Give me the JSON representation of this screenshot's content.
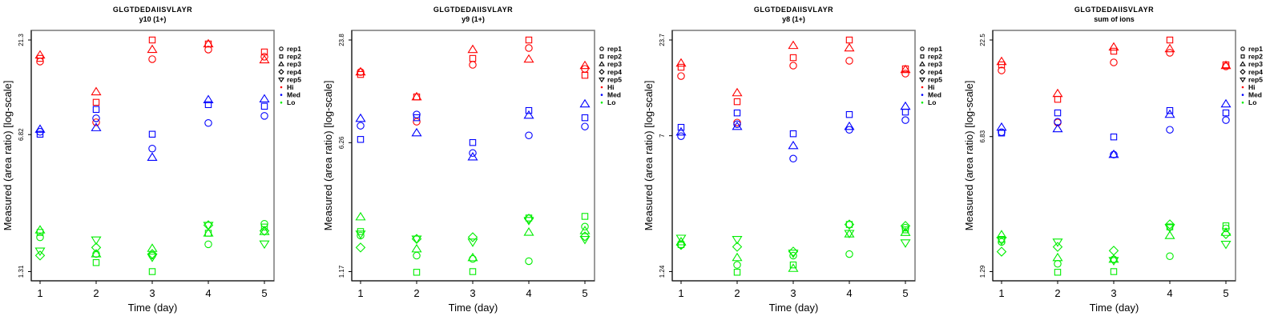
{
  "colors": {
    "Hi": "#ff0000",
    "Med": "#0000ff",
    "Lo": "#00ee00",
    "axis": "#000000",
    "box": "#808080"
  },
  "legend": {
    "reps": [
      {
        "label": "rep1",
        "shape": "circle"
      },
      {
        "label": "rep2",
        "shape": "square"
      },
      {
        "label": "rep3",
        "shape": "triangle-up"
      },
      {
        "label": "rep4",
        "shape": "diamond"
      },
      {
        "label": "rep5",
        "shape": "triangle-down"
      }
    ],
    "groups": [
      {
        "label": "Hi",
        "key": "Hi"
      },
      {
        "label": "Med",
        "key": "Med"
      },
      {
        "label": "Lo",
        "key": "Lo"
      }
    ]
  },
  "chart_data": [
    {
      "type": "scatter",
      "title": "GLGTDEDAIISVLAYR",
      "subtitle": "y10 (1+)",
      "xlabel": "Time (day)",
      "ylabel": "Measured (area ratio) [log-scale]",
      "yscale": "log",
      "x": [
        1,
        2,
        3,
        4,
        5
      ],
      "xticks": [
        "1",
        "2",
        "3",
        "4",
        "5"
      ],
      "yticks": [
        21.3,
        6.82,
        1.31
      ],
      "ytick_labels": [
        "21.3",
        "6.82",
        "1.31"
      ],
      "legend_position": "right",
      "series": [
        {
          "group": "Hi",
          "rep": "rep1",
          "values": [
            16.43,
            7.91,
            16.91,
            18.98,
            17.41
          ]
        },
        {
          "group": "Hi",
          "rep": "rep2",
          "values": [
            17.07,
            10.06,
            21.3,
            20.3,
            18.44
          ]
        },
        {
          "group": "Hi",
          "rep": "rep3",
          "values": [
            17.75,
            11.4,
            18.98,
            20.3,
            16.75
          ]
        },
        {
          "group": "Med",
          "rep": "rep1",
          "values": [
            7.05,
            8.3,
            5.76,
            7.84,
            8.54
          ]
        },
        {
          "group": "Med",
          "rep": "rep2",
          "values": [
            6.85,
            9.23,
            6.85,
            9.78,
            9.59
          ]
        },
        {
          "group": "Med",
          "rep": "rep3",
          "values": [
            7.26,
            7.4,
            5.18,
            10.36,
            10.46
          ]
        },
        {
          "group": "Lo",
          "rep": "rep1",
          "values": [
            1.98,
            1.62,
            1.59,
            1.82,
            2.33
          ]
        },
        {
          "group": "Lo",
          "rep": "rep2",
          "values": [
            2.1,
            1.46,
            1.31,
            2.08,
            2.24
          ]
        },
        {
          "group": "Lo",
          "rep": "rep3",
          "values": [
            2.16,
            1.62,
            1.73,
            2.08,
            2.12
          ]
        },
        {
          "group": "Lo",
          "rep": "rep4",
          "values": [
            1.59,
            1.75,
            1.62,
            2.29,
            2.14
          ]
        },
        {
          "group": "Lo",
          "rep": "rep5",
          "values": [
            1.68,
            1.92,
            1.56,
            2.29,
            1.83
          ]
        }
      ]
    },
    {
      "type": "scatter",
      "title": "GLGTDEDAIISVLAYR",
      "subtitle": "y9 (1+)",
      "xlabel": "Time (day)",
      "ylabel": "Measured (area ratio) [log-scale]",
      "yscale": "log",
      "x": [
        1,
        2,
        3,
        4,
        5
      ],
      "xticks": [
        "1",
        "2",
        "3",
        "4",
        "5"
      ],
      "yticks": [
        23.8,
        6.26,
        1.17
      ],
      "ytick_labels": [
        "23.8",
        "6.26",
        "1.17"
      ],
      "legend_position": "right",
      "series": [
        {
          "group": "Hi",
          "rep": "rep1",
          "values": [
            15.69,
            8.22,
            17.23,
            21.44,
            16.35
          ]
        },
        {
          "group": "Hi",
          "rep": "rep2",
          "values": [
            15.2,
            11.35,
            18.73,
            23.8,
            15.04
          ]
        },
        {
          "group": "Hi",
          "rep": "rep3",
          "values": [
            15.69,
            11.35,
            21.0,
            18.53,
            17.05
          ]
        },
        {
          "group": "Med",
          "rep": "rep1",
          "values": [
            7.8,
            9.03,
            5.47,
            6.88,
            7.72
          ]
        },
        {
          "group": "Med",
          "rep": "rep2",
          "values": [
            6.53,
            8.66,
            6.27,
            9.51,
            8.66
          ]
        },
        {
          "group": "Med",
          "rep": "rep3",
          "values": [
            8.57,
            7.1,
            5.19,
            8.93,
            10.34
          ]
        },
        {
          "group": "Lo",
          "rep": "rep1",
          "values": [
            1.87,
            1.44,
            1.38,
            1.34,
            2.1
          ]
        },
        {
          "group": "Lo",
          "rep": "rep2",
          "values": [
            1.97,
            1.16,
            1.17,
            2.35,
            2.4
          ]
        },
        {
          "group": "Lo",
          "rep": "rep3",
          "values": [
            2.38,
            1.57,
            1.4,
            1.95,
            1.99
          ]
        },
        {
          "group": "Lo",
          "rep": "rep4",
          "values": [
            1.6,
            1.79,
            1.83,
            2.33,
            1.85
          ]
        },
        {
          "group": "Lo",
          "rep": "rep5",
          "values": [
            1.91,
            1.79,
            1.72,
            2.28,
            1.78
          ]
        }
      ]
    },
    {
      "type": "scatter",
      "title": "GLGTDEDAIISVLAYR",
      "subtitle": "y8 (1+)",
      "xlabel": "Time (day)",
      "ylabel": "Measured (area ratio) [log-scale]",
      "yscale": "log",
      "x": [
        1,
        2,
        3,
        4,
        5
      ],
      "xticks": [
        "1",
        "2",
        "3",
        "4",
        "5"
      ],
      "yticks": [
        23.7,
        7,
        1.24
      ],
      "ytick_labels": [
        "23.7",
        "7",
        "1.24"
      ],
      "legend_position": "right",
      "series": [
        {
          "group": "Hi",
          "rep": "rep1",
          "values": [
            14.97,
            8.28,
            17.1,
            18.18,
            15.44
          ]
        },
        {
          "group": "Hi",
          "rep": "rep2",
          "values": [
            16.75,
            10.8,
            18.93,
            23.7,
            16.41
          ]
        },
        {
          "group": "Hi",
          "rep": "rep3",
          "values": [
            17.63,
            12.08,
            22.07,
            21.4,
            16.24
          ]
        },
        {
          "group": "Med",
          "rep": "rep1",
          "values": [
            6.96,
            8.11,
            5.23,
            7.55,
            8.54
          ]
        },
        {
          "group": "Med",
          "rep": "rep2",
          "values": [
            7.79,
            9.36,
            7.18,
            9.17,
            9.46
          ]
        },
        {
          "group": "Med",
          "rep": "rep3",
          "values": [
            7.33,
            7.87,
            6.16,
            7.87,
            10.16
          ]
        },
        {
          "group": "Lo",
          "rep": "rep1",
          "values": [
            1.74,
            1.35,
            1.52,
            1.55,
            2.17
          ]
        },
        {
          "group": "Lo",
          "rep": "rep2",
          "values": [
            1.75,
            1.23,
            1.35,
            2.26,
            2.11
          ]
        },
        {
          "group": "Lo",
          "rep": "rep3",
          "values": [
            1.81,
            1.48,
            1.29,
            2.0,
            2.04
          ]
        },
        {
          "group": "Lo",
          "rep": "rep4",
          "values": [
            1.74,
            1.7,
            1.6,
            2.26,
            2.22
          ]
        },
        {
          "group": "Lo",
          "rep": "rep5",
          "values": [
            1.9,
            1.87,
            1.57,
            2.02,
            1.79
          ]
        }
      ]
    },
    {
      "type": "scatter",
      "title": "GLGTDEDAIISVLAYR",
      "subtitle": "sum of ions",
      "xlabel": "Time (day)",
      "ylabel": "Measured (area ratio) [log-scale]",
      "yscale": "log",
      "x": [
        1,
        2,
        3,
        4,
        5
      ],
      "xticks": [
        "1",
        "2",
        "3",
        "4",
        "5"
      ],
      "yticks": [
        22.5,
        6.83,
        1.29
      ],
      "ytick_labels": [
        "22.5",
        "6.83",
        "1.29"
      ],
      "legend_position": "right",
      "series": [
        {
          "group": "Hi",
          "rep": "rep1",
          "values": [
            15.45,
            8.12,
            17.06,
            19.21,
            16.24
          ]
        },
        {
          "group": "Hi",
          "rep": "rep2",
          "values": [
            16.56,
            10.82,
            19.59,
            22.5,
            16.56
          ]
        },
        {
          "group": "Hi",
          "rep": "rep3",
          "values": [
            17.23,
            11.6,
            20.59,
            20.18,
            16.4
          ]
        },
        {
          "group": "Med",
          "rep": "rep1",
          "values": [
            7.21,
            8.2,
            5.47,
            7.43,
            8.37
          ]
        },
        {
          "group": "Med",
          "rep": "rep2",
          "values": [
            7.14,
            9.15,
            6.8,
            9.42,
            9.15
          ]
        },
        {
          "group": "Med",
          "rep": "rep3",
          "values": [
            7.65,
            7.51,
            5.47,
            8.97,
            10.2
          ]
        },
        {
          "group": "Lo",
          "rep": "rep1",
          "values": [
            1.86,
            1.42,
            1.5,
            1.56,
            2.2
          ]
        },
        {
          "group": "Lo",
          "rep": "rep2",
          "values": [
            1.92,
            1.28,
            1.29,
            2.24,
            2.27
          ]
        },
        {
          "group": "Lo",
          "rep": "rep3",
          "values": [
            2.03,
            1.53,
            1.5,
            2.01,
            2.09
          ]
        },
        {
          "group": "Lo",
          "rep": "rep4",
          "values": [
            1.65,
            1.75,
            1.67,
            2.31,
            2.05
          ]
        },
        {
          "group": "Lo",
          "rep": "rep5",
          "values": [
            1.9,
            1.86,
            1.48,
            2.22,
            1.81
          ]
        }
      ]
    }
  ]
}
